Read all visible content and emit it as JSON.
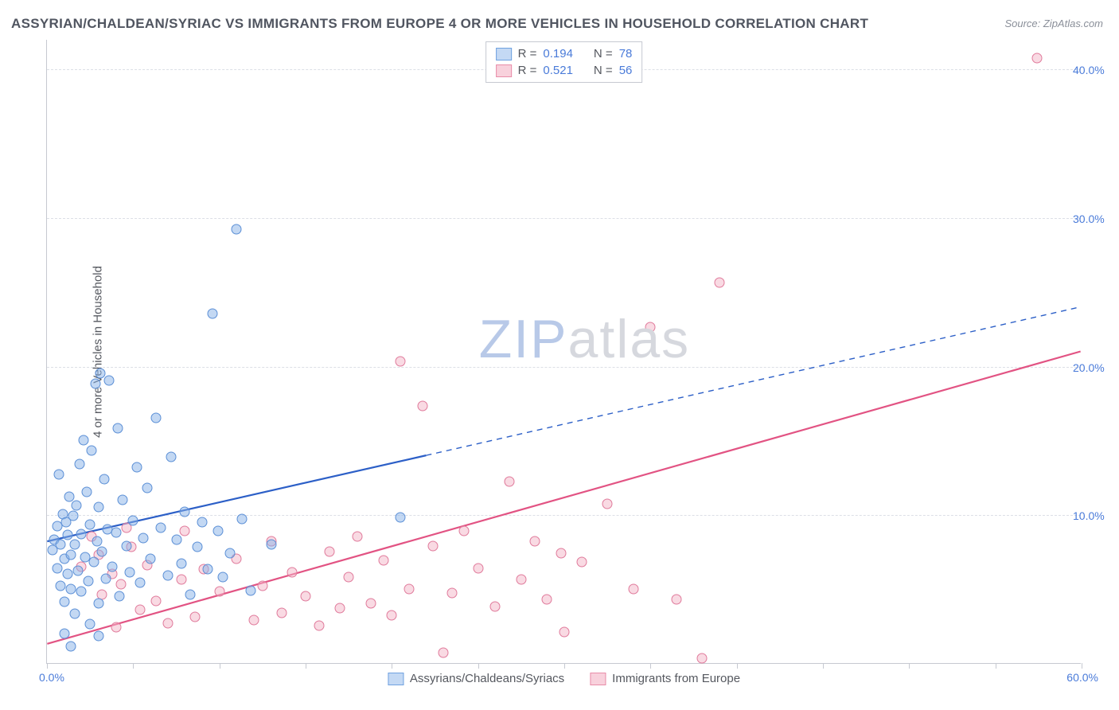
{
  "title": "ASSYRIAN/CHALDEAN/SYRIAC VS IMMIGRANTS FROM EUROPE 4 OR MORE VEHICLES IN HOUSEHOLD CORRELATION CHART",
  "source": "Source: ZipAtlas.com",
  "y_axis_title": "4 or more Vehicles in Household",
  "watermark_a": "ZIP",
  "watermark_b": "atlas",
  "chart": {
    "type": "scatter",
    "xlim": [
      0,
      60
    ],
    "ylim": [
      0,
      42
    ],
    "x_ticks": [
      0,
      5,
      10,
      15,
      20,
      25,
      30,
      35,
      40,
      45,
      50,
      55,
      60
    ],
    "x_label_min": "0.0%",
    "x_label_max": "60.0%",
    "y_gridlines": [
      {
        "v": 10,
        "label": "10.0%"
      },
      {
        "v": 20,
        "label": "20.0%"
      },
      {
        "v": 30,
        "label": "30.0%"
      },
      {
        "v": 40,
        "label": "40.0%"
      }
    ],
    "marker_radius": 6.5,
    "marker_stroke_width": 1,
    "background_color": "#ffffff",
    "grid_color": "#dcdfe6",
    "axis_color": "#c6c9d1",
    "tick_label_color": "#4a7bd9",
    "legend_top": [
      {
        "r_label": "R =",
        "r": "0.194",
        "n_label": "N =",
        "n": "78",
        "fill": "#c4d9f4",
        "stroke": "#6fa1e0"
      },
      {
        "r_label": "R =",
        "r": "0.521",
        "n_label": "N =",
        "n": "56",
        "fill": "#f8d1dc",
        "stroke": "#e88ca8"
      }
    ],
    "legend_bottom": [
      {
        "label": "Assyrians/Chaldeans/Syriacs",
        "fill": "#c4d9f4",
        "stroke": "#6fa1e0"
      },
      {
        "label": "Immigrants from Europe",
        "fill": "#f8d1dc",
        "stroke": "#e88ca8"
      }
    ],
    "series_blue": {
      "fill": "rgba(135,178,232,0.5)",
      "stroke": "#5b8fd6",
      "trend_color": "#2c5fc7",
      "trend_solid_max_x": 22,
      "trend": {
        "x1": 0,
        "y1": 8.2,
        "x2": 60,
        "y2": 24.0
      },
      "points": [
        [
          0.3,
          7.6
        ],
        [
          0.4,
          8.3
        ],
        [
          0.6,
          6.4
        ],
        [
          0.6,
          9.2
        ],
        [
          0.8,
          5.2
        ],
        [
          0.8,
          8.0
        ],
        [
          0.9,
          10.0
        ],
        [
          1.0,
          4.1
        ],
        [
          1.0,
          7.0
        ],
        [
          1.1,
          9.5
        ],
        [
          1.2,
          6.0
        ],
        [
          1.2,
          8.6
        ],
        [
          1.3,
          11.2
        ],
        [
          1.4,
          5.0
        ],
        [
          1.4,
          7.3
        ],
        [
          1.5,
          9.9
        ],
        [
          1.6,
          3.3
        ],
        [
          1.6,
          8.0
        ],
        [
          1.7,
          10.6
        ],
        [
          1.8,
          6.2
        ],
        [
          1.9,
          13.4
        ],
        [
          2.0,
          4.8
        ],
        [
          2.0,
          8.7
        ],
        [
          2.1,
          15.0
        ],
        [
          2.2,
          7.1
        ],
        [
          2.3,
          11.5
        ],
        [
          2.4,
          5.5
        ],
        [
          2.5,
          9.3
        ],
        [
          2.6,
          14.3
        ],
        [
          2.7,
          6.8
        ],
        [
          2.8,
          18.8
        ],
        [
          2.9,
          8.2
        ],
        [
          3.0,
          4.0
        ],
        [
          3.0,
          10.5
        ],
        [
          3.1,
          19.5
        ],
        [
          3.2,
          7.5
        ],
        [
          3.3,
          12.4
        ],
        [
          3.4,
          5.7
        ],
        [
          3.5,
          9.0
        ],
        [
          3.6,
          19.0
        ],
        [
          3.8,
          6.5
        ],
        [
          4.0,
          8.8
        ],
        [
          4.1,
          15.8
        ],
        [
          4.2,
          4.5
        ],
        [
          4.4,
          11.0
        ],
        [
          4.6,
          7.9
        ],
        [
          4.8,
          6.1
        ],
        [
          5.0,
          9.6
        ],
        [
          5.2,
          13.2
        ],
        [
          5.4,
          5.4
        ],
        [
          5.6,
          8.4
        ],
        [
          5.8,
          11.8
        ],
        [
          6.0,
          7.0
        ],
        [
          6.3,
          16.5
        ],
        [
          6.6,
          9.1
        ],
        [
          7.0,
          5.9
        ],
        [
          7.2,
          13.9
        ],
        [
          7.5,
          8.3
        ],
        [
          7.8,
          6.7
        ],
        [
          8.0,
          10.2
        ],
        [
          8.3,
          4.6
        ],
        [
          8.7,
          7.8
        ],
        [
          9.0,
          9.5
        ],
        [
          9.3,
          6.3
        ],
        [
          9.6,
          23.5
        ],
        [
          9.9,
          8.9
        ],
        [
          10.2,
          5.8
        ],
        [
          10.6,
          7.4
        ],
        [
          11.0,
          29.2
        ],
        [
          11.3,
          9.7
        ],
        [
          11.8,
          4.9
        ],
        [
          13.0,
          8.0
        ],
        [
          20.5,
          9.8
        ],
        [
          1.0,
          2.0
        ],
        [
          1.4,
          1.1
        ],
        [
          2.5,
          2.6
        ],
        [
          0.7,
          12.7
        ],
        [
          3.0,
          1.8
        ]
      ]
    },
    "series_pink": {
      "fill": "rgba(244,181,199,0.5)",
      "stroke": "#e07a9b",
      "trend_color": "#e25383",
      "trend": {
        "x1": 0,
        "y1": 1.3,
        "x2": 60,
        "y2": 21.0
      },
      "points": [
        [
          2.0,
          6.5
        ],
        [
          3.0,
          7.3
        ],
        [
          3.2,
          4.6
        ],
        [
          3.8,
          6.0
        ],
        [
          4.0,
          2.4
        ],
        [
          4.3,
          5.3
        ],
        [
          4.9,
          7.8
        ],
        [
          5.4,
          3.6
        ],
        [
          5.8,
          6.6
        ],
        [
          6.3,
          4.2
        ],
        [
          7.0,
          2.7
        ],
        [
          7.8,
          5.6
        ],
        [
          8.0,
          8.9
        ],
        [
          8.6,
          3.1
        ],
        [
          9.1,
          6.3
        ],
        [
          10.0,
          4.8
        ],
        [
          11.0,
          7.0
        ],
        [
          12.0,
          2.9
        ],
        [
          12.5,
          5.2
        ],
        [
          13.0,
          8.2
        ],
        [
          13.6,
          3.4
        ],
        [
          14.2,
          6.1
        ],
        [
          15.0,
          4.5
        ],
        [
          15.8,
          2.5
        ],
        [
          16.4,
          7.5
        ],
        [
          17.0,
          3.7
        ],
        [
          17.5,
          5.8
        ],
        [
          18.0,
          8.5
        ],
        [
          18.8,
          4.0
        ],
        [
          19.5,
          6.9
        ],
        [
          20.0,
          3.2
        ],
        [
          20.5,
          20.3
        ],
        [
          21.0,
          5.0
        ],
        [
          21.8,
          17.3
        ],
        [
          22.4,
          7.9
        ],
        [
          23.0,
          0.7
        ],
        [
          23.5,
          4.7
        ],
        [
          24.2,
          8.9
        ],
        [
          25.0,
          6.4
        ],
        [
          26.0,
          3.8
        ],
        [
          26.8,
          12.2
        ],
        [
          27.5,
          5.6
        ],
        [
          28.3,
          8.2
        ],
        [
          29.0,
          4.3
        ],
        [
          30.0,
          2.1
        ],
        [
          31.0,
          6.8
        ],
        [
          32.5,
          10.7
        ],
        [
          34.0,
          5.0
        ],
        [
          35.0,
          22.6
        ],
        [
          36.5,
          4.3
        ],
        [
          38.0,
          0.3
        ],
        [
          39.0,
          25.6
        ],
        [
          2.6,
          8.5
        ],
        [
          4.6,
          9.1
        ],
        [
          29.8,
          7.4
        ],
        [
          57.4,
          40.7
        ]
      ]
    }
  }
}
